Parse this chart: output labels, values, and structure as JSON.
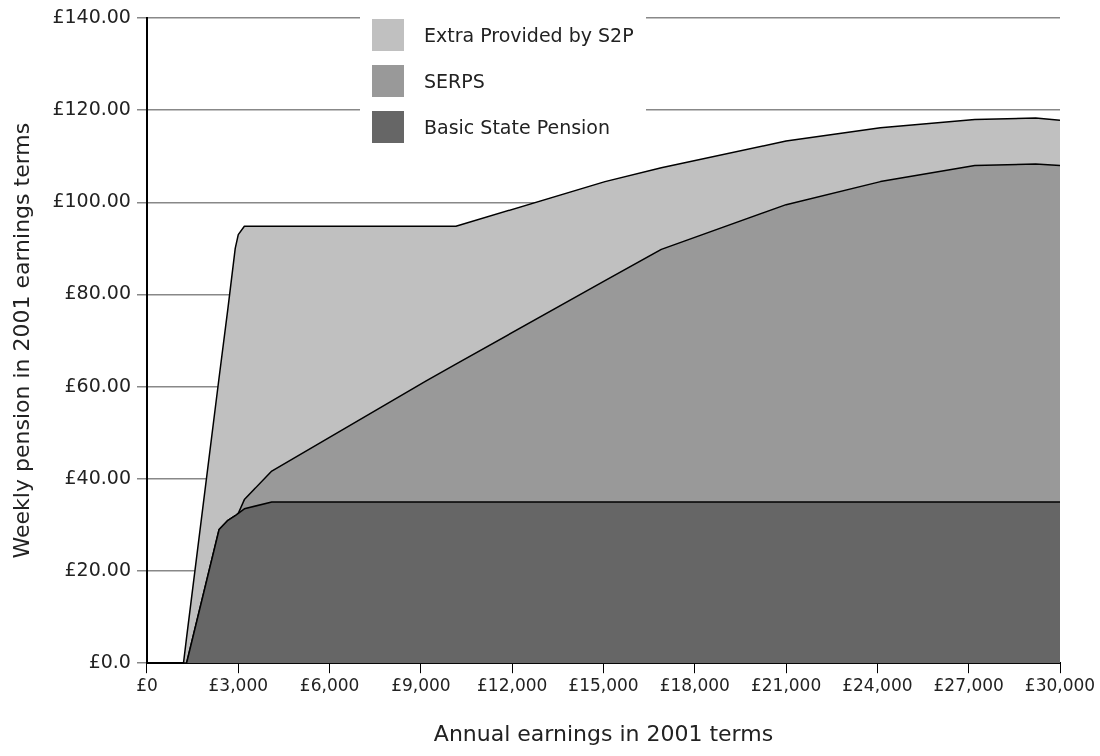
{
  "chart_data": {
    "type": "area",
    "stacked": true,
    "xlabel": "Annual earnings in 2001 terms",
    "ylabel": "Weekly pension in 2001 earnings terms",
    "x": [
      1200,
      1300,
      2370,
      2660,
      2900,
      3000,
      3200,
      4100,
      9160,
      10150,
      15050,
      16900,
      21000,
      24100,
      27200,
      29200,
      30000
    ],
    "series": [
      {
        "name": "Basic State Pension",
        "color": "#666666",
        "values": [
          0,
          0,
          29,
          31,
          32,
          32.5,
          33.5,
          35,
          35,
          35,
          35,
          35,
          35,
          35,
          35,
          35,
          35
        ]
      },
      {
        "name": "SERPS",
        "color": "#999999",
        "values": [
          0,
          0,
          0,
          0,
          0,
          0,
          2,
          6.7,
          26.2,
          29.9,
          48,
          54.8,
          64.5,
          69.5,
          73,
          73.3,
          73
        ]
      },
      {
        "name": "Extra Provided by S2P",
        "color": "#c0c0c0",
        "values": [
          0,
          5.5,
          33,
          46,
          58,
          60.5,
          59.3,
          53.1,
          33.6,
          29.9,
          21.5,
          17.7,
          13.8,
          11.7,
          10,
          10,
          9.8
        ]
      }
    ],
    "xlim": [
      0,
      30000
    ],
    "xticks": [
      {
        "value": 0,
        "label": "£0"
      },
      {
        "value": 3000,
        "label": "£3,000"
      },
      {
        "value": 6000,
        "label": "£6,000"
      },
      {
        "value": 9000,
        "label": "£9,000"
      },
      {
        "value": 12000,
        "label": "£12,000"
      },
      {
        "value": 15000,
        "label": "£15,000"
      },
      {
        "value": 18000,
        "label": "£18,000"
      },
      {
        "value": 21000,
        "label": "£21,000"
      },
      {
        "value": 24000,
        "label": "£24,000"
      },
      {
        "value": 27000,
        "label": "£27,000"
      },
      {
        "value": 30000,
        "label": "£30,000"
      }
    ],
    "ylim": [
      0,
      140
    ],
    "yticks": [
      {
        "value": 0,
        "label": "£0.0"
      },
      {
        "value": 20,
        "label": "£20.00"
      },
      {
        "value": 40,
        "label": "£40.00"
      },
      {
        "value": 60,
        "label": "£60.00"
      },
      {
        "value": 80,
        "label": "£80.00"
      },
      {
        "value": 100,
        "label": "£100.00"
      },
      {
        "value": 120,
        "label": "£120.00"
      },
      {
        "value": 140,
        "label": "£140.00"
      }
    ],
    "grid": "y",
    "legend": "top",
    "marker": "none",
    "line_style": "solid"
  }
}
